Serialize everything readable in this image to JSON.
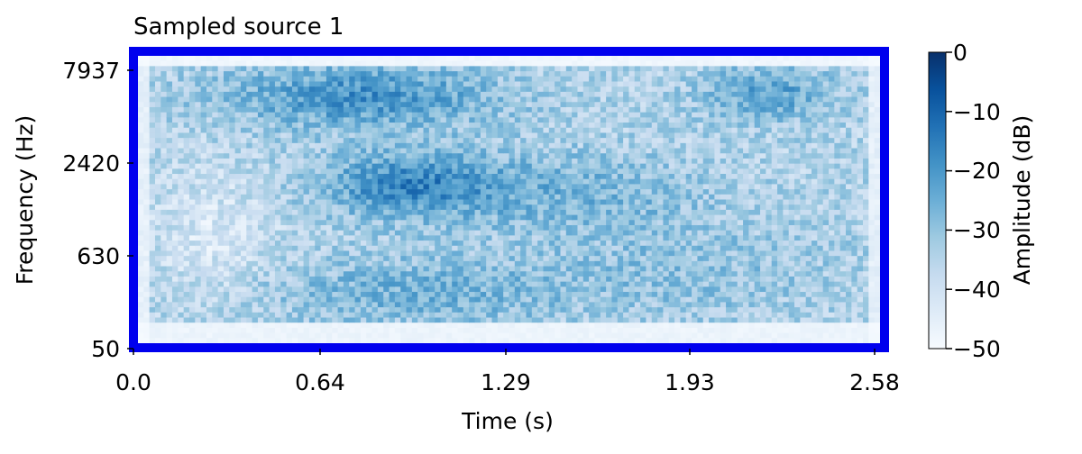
{
  "chart_data": {
    "type": "heatmap",
    "title": "Sampled source 1",
    "xlabel": "Time (s)",
    "ylabel": "Frequency (Hz)",
    "xlim": [
      0.0,
      2.58
    ],
    "x_ticks": [
      "0.0",
      "0.64",
      "1.29",
      "1.93",
      "2.58"
    ],
    "y_ticks": [
      "50",
      "630",
      "2420",
      "7937"
    ],
    "y_scale": "log",
    "colormap": "Blues",
    "colorbar": {
      "label": "Amplitude (dB)",
      "range": [
        -50,
        0
      ],
      "ticks": [
        "0",
        "−10",
        "−20",
        "−30",
        "−40",
        "−50"
      ]
    },
    "frame_color": "#0000ee",
    "grid": false
  }
}
